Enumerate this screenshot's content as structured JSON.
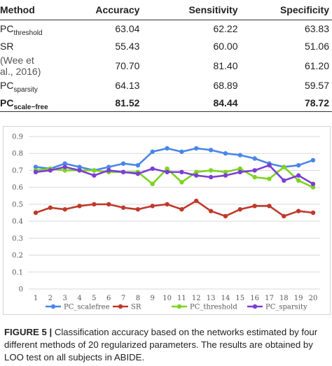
{
  "table": {
    "headers": {
      "method": "Method",
      "accuracy": "Accuracy",
      "sensitivity": "Sensitivity",
      "specificity": "Specificity"
    },
    "rows": [
      {
        "prefix": "PC",
        "sub": "threshold",
        "accuracy": "63.04",
        "sensitivity": "62.22",
        "specificity": "63.83",
        "bold": false
      },
      {
        "prefix": "SR",
        "sub": "",
        "accuracy": "55.43",
        "sensitivity": "60.00",
        "specificity": "51.06",
        "bold": false
      },
      {
        "prefix": "(Wee et al., 2016)",
        "sub": "",
        "accuracy": "70.70",
        "sensitivity": "81.40",
        "specificity": "61.20",
        "bold": false,
        "muted": true
      },
      {
        "prefix": "PC",
        "sub": "sparsity",
        "accuracy": "64.13",
        "sensitivity": "68.89",
        "specificity": "59.57",
        "bold": false
      },
      {
        "prefix": "PC",
        "sub": "scale−free",
        "accuracy": "81.52",
        "sensitivity": "84.44",
        "specificity": "78.72",
        "bold": true
      }
    ]
  },
  "chart_data": {
    "type": "line",
    "x": [
      1,
      2,
      3,
      4,
      5,
      6,
      7,
      8,
      9,
      10,
      11,
      12,
      13,
      14,
      15,
      16,
      17,
      18,
      19,
      20
    ],
    "ylim": [
      0,
      0.9
    ],
    "yticks": [
      "0",
      "0.1",
      "0.2",
      "0.3",
      "0.4",
      "0.5",
      "0.6",
      "0.7",
      "0.8",
      "0.9"
    ],
    "xticks": [
      "1",
      "2",
      "3",
      "4",
      "5",
      "6",
      "7",
      "8",
      "9",
      "10",
      "11",
      "12",
      "13",
      "14",
      "15",
      "16",
      "17",
      "18",
      "19",
      "20"
    ],
    "grid": true,
    "legend_position": "bottom",
    "series": [
      {
        "name": "PC_scalefree",
        "color": "#4a86e8",
        "values": [
          0.72,
          0.71,
          0.74,
          0.72,
          0.7,
          0.72,
          0.74,
          0.73,
          0.81,
          0.83,
          0.81,
          0.83,
          0.82,
          0.8,
          0.79,
          0.77,
          0.74,
          0.72,
          0.73,
          0.76
        ]
      },
      {
        "name": "SR",
        "color": "#c0392b",
        "values": [
          0.45,
          0.48,
          0.47,
          0.49,
          0.5,
          0.5,
          0.48,
          0.47,
          0.49,
          0.5,
          0.47,
          0.52,
          0.46,
          0.43,
          0.47,
          0.49,
          0.49,
          0.43,
          0.46,
          0.45
        ]
      },
      {
        "name": "PC_threshold",
        "color": "#7ed321",
        "values": [
          0.7,
          0.71,
          0.7,
          0.7,
          0.7,
          0.69,
          0.69,
          0.69,
          0.62,
          0.71,
          0.63,
          0.69,
          0.7,
          0.69,
          0.71,
          0.66,
          0.65,
          0.72,
          0.64,
          0.6
        ]
      },
      {
        "name": "PC_sparsity",
        "color": "#7b3fd1",
        "values": [
          0.69,
          0.7,
          0.72,
          0.7,
          0.67,
          0.7,
          0.69,
          0.68,
          0.71,
          0.69,
          0.69,
          0.67,
          0.66,
          0.67,
          0.69,
          0.7,
          0.73,
          0.64,
          0.67,
          0.62
        ]
      }
    ]
  },
  "caption": {
    "label": "FIGURE 5 |",
    "text": " Classification accuracy based on the networks estimated by four different methods of 20 regularized parameters. The results are obtained by LOO test on all subjects in ABIDE."
  }
}
